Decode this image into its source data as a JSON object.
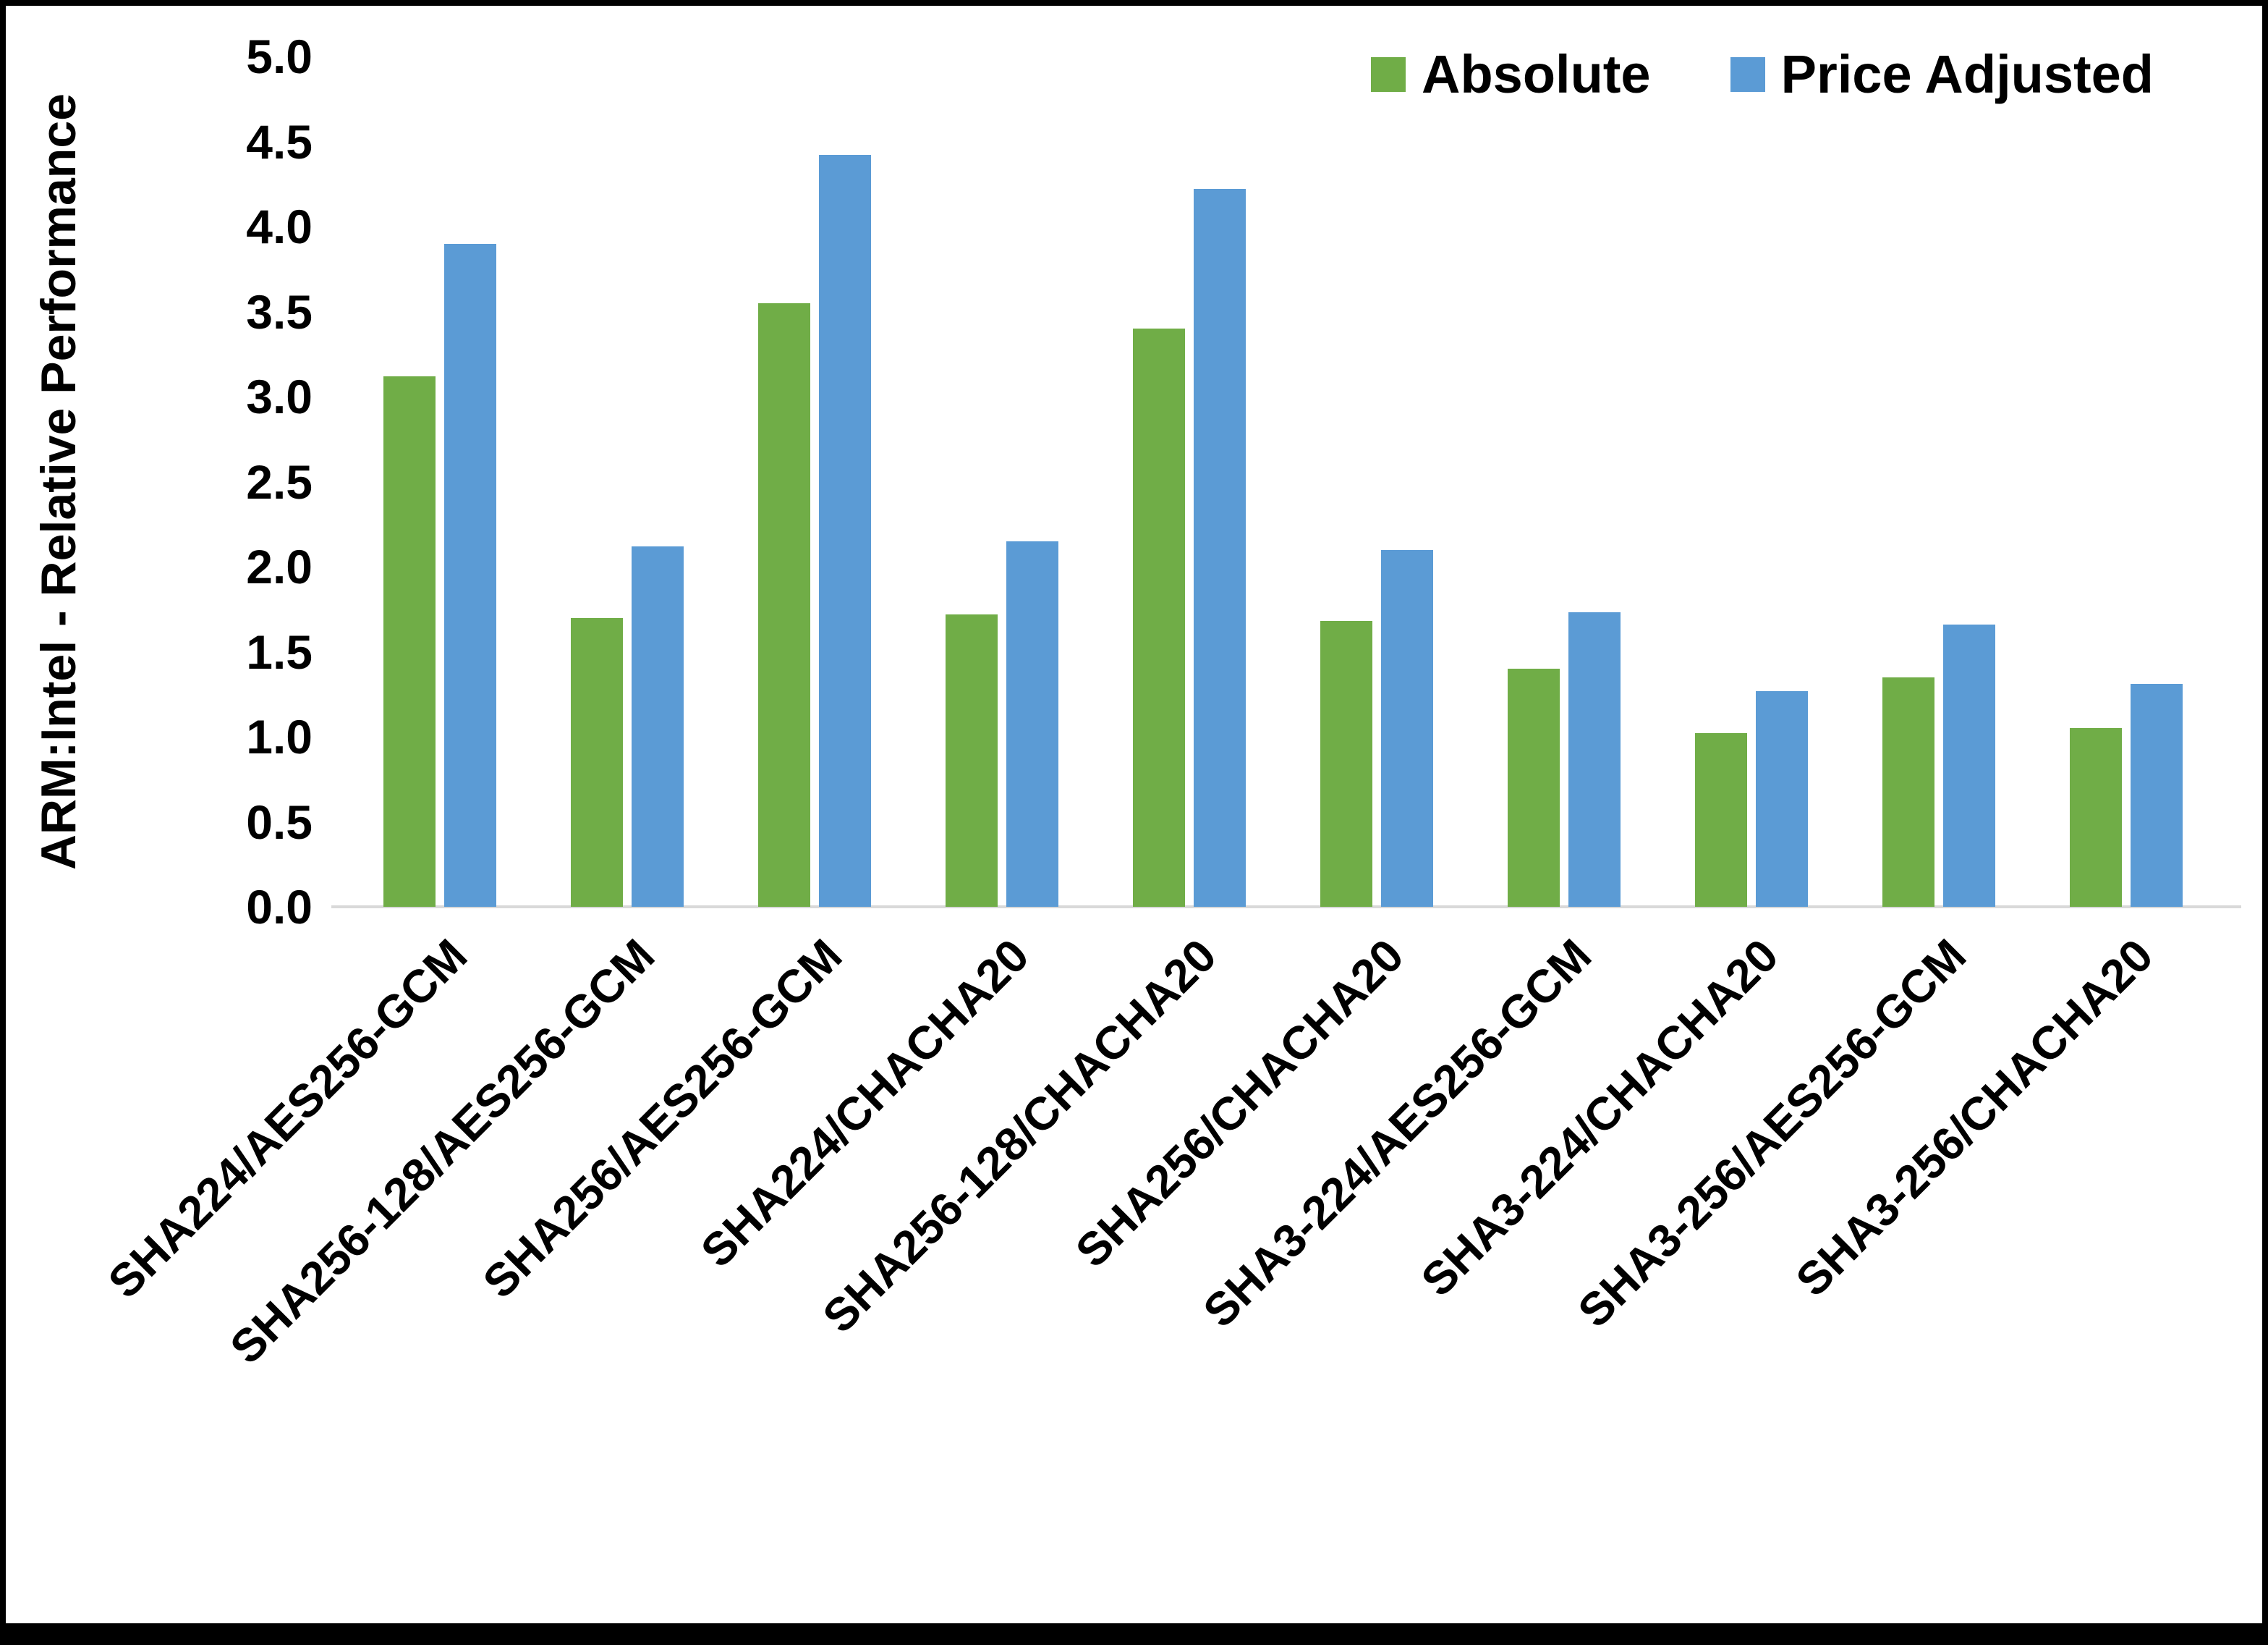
{
  "chart_data": {
    "type": "bar",
    "title": "",
    "ylabel": "ARM:Intel - Relative Performance",
    "xlabel": "",
    "ylim": [
      0,
      5.0
    ],
    "y_ticks": [
      "0.0",
      "0.5",
      "1.0",
      "1.5",
      "2.0",
      "2.5",
      "3.0",
      "3.5",
      "4.0",
      "4.5",
      "5.0"
    ],
    "grid": "off",
    "legend_position": "top-right",
    "categories": [
      "SHA224/AES256-GCM",
      "SHA256-128/AES256-GCM",
      "SHA256/AES256-GCM",
      "SHA224/CHACHA20",
      "SHA256-128/CHACHA20",
      "SHA256/CHACHA20",
      "SHA3-224/AES256-GCM",
      "SHA3-224/CHACHA20",
      "SHA3-256/AES256-GCM",
      "SHA3-256/CHACHA20"
    ],
    "series": [
      {
        "name": "Absolute",
        "color": "#70AD47",
        "values": [
          3.12,
          1.7,
          3.55,
          1.72,
          3.4,
          1.68,
          1.4,
          1.02,
          1.35,
          1.05
        ]
      },
      {
        "name": "Price Adjusted",
        "color": "#5B9BD5",
        "values": [
          3.9,
          2.12,
          4.42,
          2.15,
          4.22,
          2.1,
          1.73,
          1.27,
          1.66,
          1.31
        ]
      }
    ]
  }
}
